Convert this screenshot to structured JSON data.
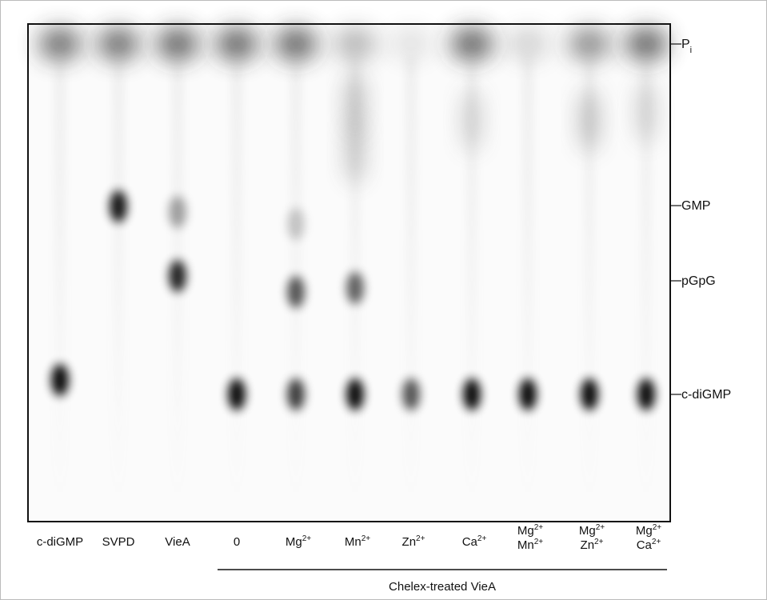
{
  "lanes": [
    [
      {
        "text": "c-diGMP"
      }
    ],
    [
      {
        "text": "SVPD"
      }
    ],
    [
      {
        "text": "VieA"
      }
    ],
    [
      {
        "text": "0"
      }
    ],
    [
      {
        "text": "Mg",
        "sup": "2+"
      }
    ],
    [
      {
        "text": "Mn",
        "sup": "2+"
      }
    ],
    [
      {
        "text": "Zn",
        "sup": "2+"
      }
    ],
    [
      {
        "text": "Ca",
        "sup": "2+"
      }
    ],
    [
      {
        "text": "Mg",
        "sup": "2+"
      },
      {
        "text": "Mn",
        "sup": "2+"
      }
    ],
    [
      {
        "text": "Mg",
        "sup": "2+"
      },
      {
        "text": "Zn",
        "sup": "2+"
      }
    ],
    [
      {
        "text": "Mg",
        "sup": "2+"
      },
      {
        "text": "Ca",
        "sup": "2+"
      }
    ]
  ],
  "markers": [
    {
      "text": "P",
      "sub": "i"
    },
    {
      "text": "GMP"
    },
    {
      "text": "pGpG"
    },
    {
      "text": "c-diGMP"
    }
  ],
  "group_label": "Chelex-treated VieA"
}
